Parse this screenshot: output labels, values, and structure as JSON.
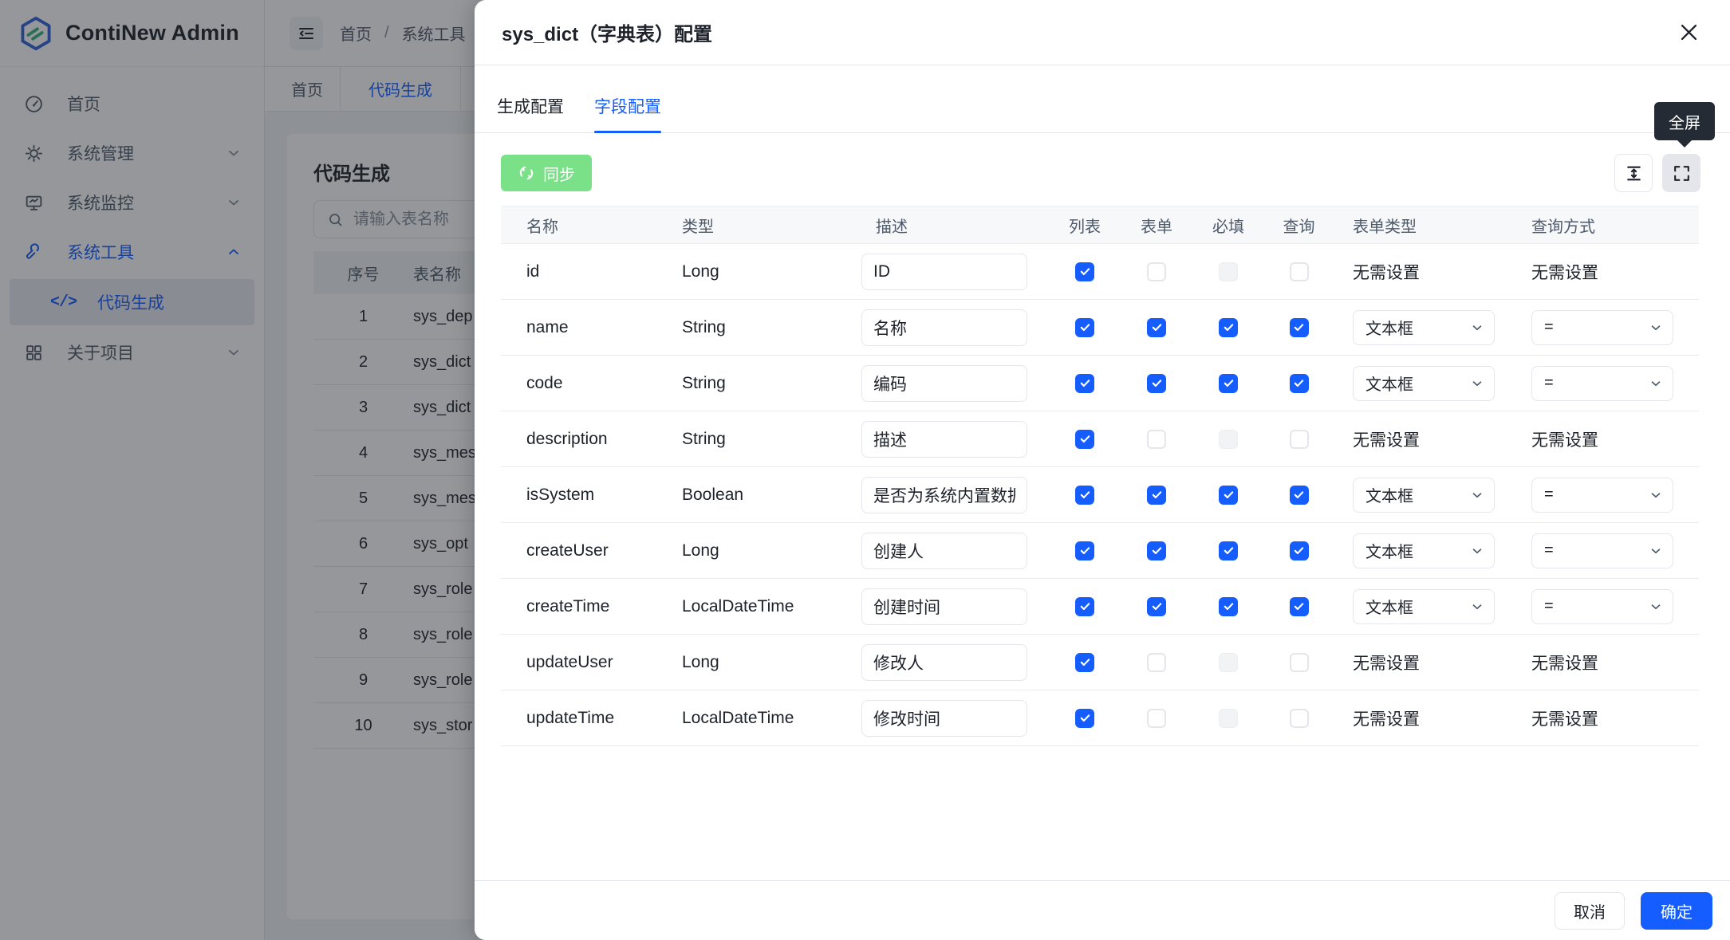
{
  "app": {
    "title": "ContiNew Admin"
  },
  "colors": {
    "primary": "#165dff",
    "success": "#7be188",
    "tooltip_bg": "#252b35",
    "mask": "rgba(29,33,41,0.47)",
    "text": "#1d2129",
    "text_secondary": "#4e5969",
    "border": "#e5e6eb"
  },
  "sidebar": {
    "items": [
      {
        "label": "首页",
        "icon": "dashboard-icon"
      },
      {
        "label": "系统管理",
        "icon": "gear-icon",
        "state": "collapsed"
      },
      {
        "label": "系统监控",
        "icon": "monitor-icon",
        "state": "collapsed"
      },
      {
        "label": "系统工具",
        "icon": "wrench-icon",
        "state": "expanded",
        "active": true,
        "children": [
          {
            "label": "代码生成",
            "icon": "code-icon",
            "active": true
          }
        ]
      },
      {
        "label": "关于项目",
        "icon": "grid-icon",
        "state": "collapsed"
      }
    ]
  },
  "topbar": {
    "breadcrumb": [
      "首页",
      "系统工具"
    ],
    "separator": "/"
  },
  "tabbar": {
    "tabs": [
      {
        "label": "首页"
      },
      {
        "label": "代码生成",
        "active": true
      }
    ]
  },
  "content": {
    "title": "代码生成",
    "search_placeholder": "请输入表名称",
    "table": {
      "headers": [
        "序号",
        "表名称"
      ],
      "rows": [
        [
          "1",
          "sys_dep"
        ],
        [
          "2",
          "sys_dict"
        ],
        [
          "3",
          "sys_dict"
        ],
        [
          "4",
          "sys_mes"
        ],
        [
          "5",
          "sys_mes"
        ],
        [
          "6",
          "sys_opt"
        ],
        [
          "7",
          "sys_role"
        ],
        [
          "8",
          "sys_role"
        ],
        [
          "9",
          "sys_role"
        ],
        [
          "10",
          "sys_stor"
        ]
      ]
    }
  },
  "drawer": {
    "title": "sys_dict（字典表）配置",
    "tabs": [
      {
        "label": "生成配置"
      },
      {
        "label": "字段配置",
        "active": true
      }
    ],
    "sync_button": "同步",
    "tooltip": "全屏",
    "no_setting_label": "无需设置",
    "table": {
      "headers": [
        "名称",
        "类型",
        "描述",
        "列表",
        "表单",
        "必填",
        "查询",
        "表单类型",
        "查询方式"
      ],
      "rows": [
        {
          "name": "id",
          "type": "Long",
          "desc": "ID",
          "list": "checked",
          "form": "unchecked",
          "required": "disabled",
          "query": "unchecked",
          "form_type": null,
          "query_type": null
        },
        {
          "name": "name",
          "type": "String",
          "desc": "名称",
          "list": "checked",
          "form": "checked",
          "required": "checked",
          "query": "checked",
          "form_type": "文本框",
          "query_type": "="
        },
        {
          "name": "code",
          "type": "String",
          "desc": "编码",
          "list": "checked",
          "form": "checked",
          "required": "checked",
          "query": "checked",
          "form_type": "文本框",
          "query_type": "="
        },
        {
          "name": "description",
          "type": "String",
          "desc": "描述",
          "list": "checked",
          "form": "unchecked",
          "required": "disabled",
          "query": "unchecked",
          "form_type": null,
          "query_type": null
        },
        {
          "name": "isSystem",
          "type": "Boolean",
          "desc": "是否为系统内置数据",
          "list": "checked",
          "form": "checked",
          "required": "checked",
          "query": "checked",
          "form_type": "文本框",
          "query_type": "="
        },
        {
          "name": "createUser",
          "type": "Long",
          "desc": "创建人",
          "list": "checked",
          "form": "checked",
          "required": "checked",
          "query": "checked",
          "form_type": "文本框",
          "query_type": "="
        },
        {
          "name": "createTime",
          "type": "LocalDateTime",
          "desc": "创建时间",
          "list": "checked",
          "form": "checked",
          "required": "checked",
          "query": "checked",
          "form_type": "文本框",
          "query_type": "="
        },
        {
          "name": "updateUser",
          "type": "Long",
          "desc": "修改人",
          "list": "checked",
          "form": "unchecked",
          "required": "disabled",
          "query": "unchecked",
          "form_type": null,
          "query_type": null
        },
        {
          "name": "updateTime",
          "type": "LocalDateTime",
          "desc": "修改时间",
          "list": "checked",
          "form": "unchecked",
          "required": "disabled",
          "query": "unchecked",
          "form_type": null,
          "query_type": null
        }
      ]
    },
    "footer": {
      "cancel": "取消",
      "ok": "确定"
    }
  },
  "icons": {
    "sidebar": [
      "dashboard-icon",
      "gear-icon",
      "monitor-icon",
      "wrench-icon",
      "code-icon",
      "grid-icon"
    ],
    "topbar": [
      "menu-fold-icon"
    ],
    "search": [
      "search-icon"
    ],
    "drawer": [
      "close-icon",
      "sync-icon",
      "row-height-icon",
      "fullscreen-icon",
      "chevron-down-icon",
      "checkbox-check-icon"
    ]
  }
}
